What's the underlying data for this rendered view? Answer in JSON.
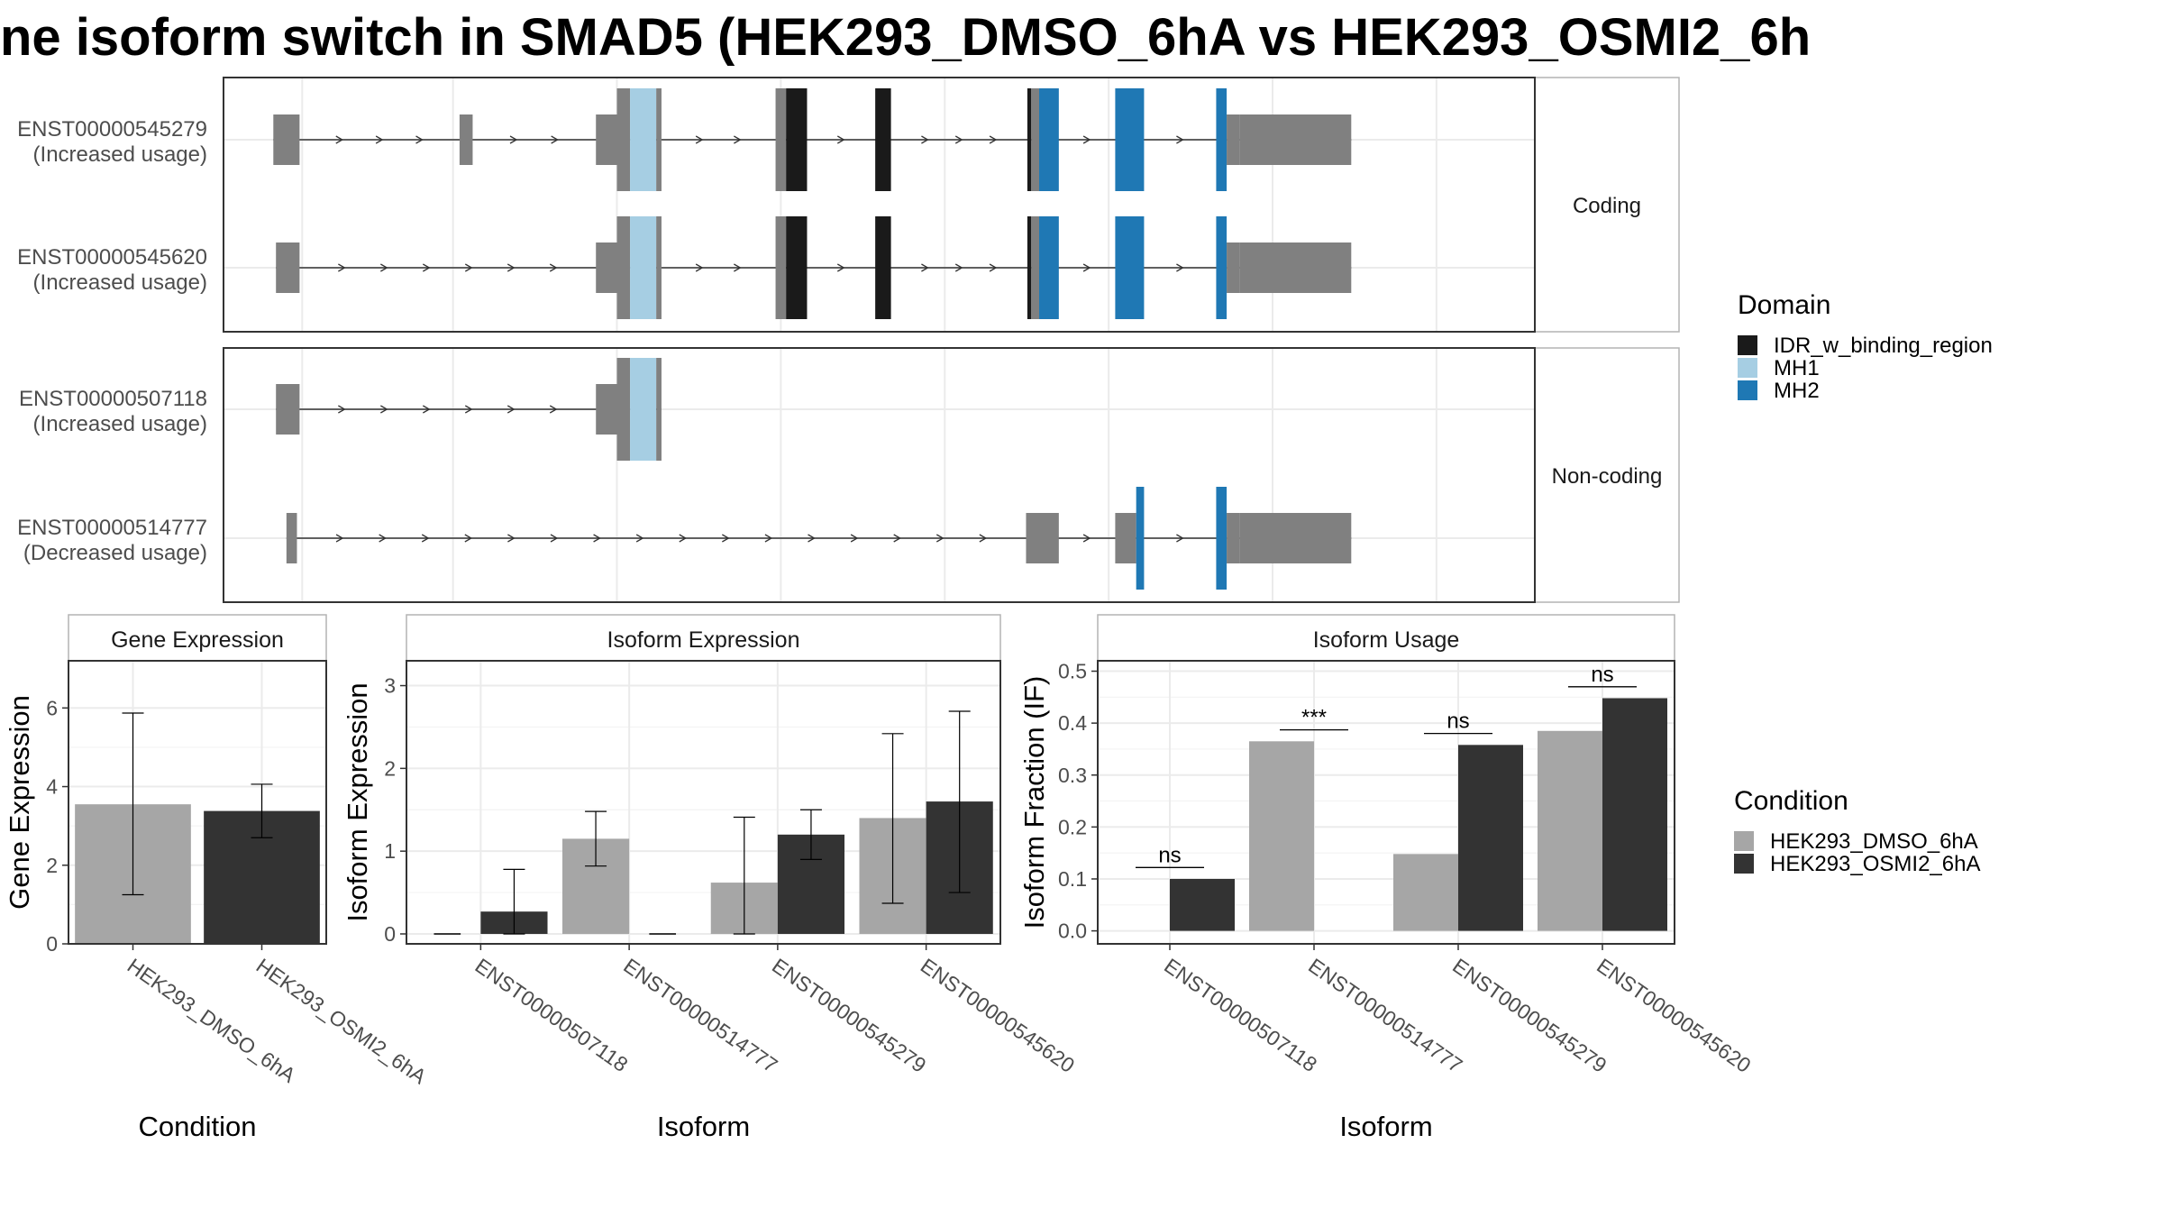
{
  "title": "ne isoform switch in SMAD5 (HEK293_DMSO_6hA vs HEK293_OSMI2_6h",
  "colors": {
    "utr": "#808080",
    "idr": "#1a1a1a",
    "mh1": "#a6cee3",
    "mh2": "#1f78b4",
    "dmso": "#a6a6a6",
    "osmi": "#333333"
  },
  "structure": {
    "xlim": [
      0,
      1000
    ],
    "facets": [
      {
        "label": "Coding",
        "transcripts": [
          {
            "id": "ENST00000545279",
            "usage": "(Increased usage)",
            "exons": [
              {
                "s": 38,
                "e": 58,
                "t": "utr"
              },
              {
                "s": 180,
                "e": 190,
                "t": "utr"
              },
              {
                "s": 284,
                "e": 300,
                "t": "utr"
              },
              {
                "s": 300,
                "e": 310,
                "t": "cds"
              },
              {
                "s": 310,
                "e": 330,
                "t": "mh1"
              },
              {
                "s": 330,
                "e": 334,
                "t": "cds"
              },
              {
                "s": 421,
                "e": 429,
                "t": "cds"
              },
              {
                "s": 429,
                "e": 445,
                "t": "idr"
              },
              {
                "s": 497,
                "e": 509,
                "t": "idr"
              },
              {
                "s": 613,
                "e": 616,
                "t": "idr"
              },
              {
                "s": 616,
                "e": 622,
                "t": "cds"
              },
              {
                "s": 622,
                "e": 637,
                "t": "mh2"
              },
              {
                "s": 680,
                "e": 702,
                "t": "mh2"
              },
              {
                "s": 757,
                "e": 765,
                "t": "mh2"
              },
              {
                "s": 765,
                "e": 775,
                "t": "utr"
              },
              {
                "s": 775,
                "e": 860,
                "t": "utr_thick"
              }
            ]
          },
          {
            "id": "ENST00000545620",
            "usage": "(Increased usage)",
            "exons": [
              {
                "s": 40,
                "e": 58,
                "t": "utr"
              },
              {
                "s": 284,
                "e": 300,
                "t": "utr"
              },
              {
                "s": 300,
                "e": 310,
                "t": "cds"
              },
              {
                "s": 310,
                "e": 330,
                "t": "mh1"
              },
              {
                "s": 330,
                "e": 334,
                "t": "cds"
              },
              {
                "s": 421,
                "e": 429,
                "t": "cds"
              },
              {
                "s": 429,
                "e": 445,
                "t": "idr"
              },
              {
                "s": 497,
                "e": 509,
                "t": "idr"
              },
              {
                "s": 613,
                "e": 616,
                "t": "idr"
              },
              {
                "s": 616,
                "e": 622,
                "t": "cds"
              },
              {
                "s": 622,
                "e": 637,
                "t": "mh2"
              },
              {
                "s": 680,
                "e": 702,
                "t": "mh2"
              },
              {
                "s": 757,
                "e": 765,
                "t": "mh2"
              },
              {
                "s": 765,
                "e": 775,
                "t": "utr"
              },
              {
                "s": 775,
                "e": 860,
                "t": "utr_thick"
              }
            ]
          }
        ]
      },
      {
        "label": "Non-coding",
        "transcripts": [
          {
            "id": "ENST00000507118",
            "usage": "(Increased usage)",
            "exons": [
              {
                "s": 40,
                "e": 58,
                "t": "utr"
              },
              {
                "s": 284,
                "e": 300,
                "t": "utr"
              },
              {
                "s": 300,
                "e": 310,
                "t": "cds"
              },
              {
                "s": 310,
                "e": 330,
                "t": "mh1"
              },
              {
                "s": 330,
                "e": 334,
                "t": "cds"
              }
            ]
          },
          {
            "id": "ENST00000514777",
            "usage": "(Decreased usage)",
            "exons": [
              {
                "s": 48,
                "e": 56,
                "t": "utr"
              },
              {
                "s": 612,
                "e": 637,
                "t": "utr"
              },
              {
                "s": 680,
                "e": 696,
                "t": "utr"
              },
              {
                "s": 696,
                "e": 702,
                "t": "mh2"
              },
              {
                "s": 757,
                "e": 765,
                "t": "mh2"
              },
              {
                "s": 765,
                "e": 775,
                "t": "utr"
              },
              {
                "s": 775,
                "e": 860,
                "t": "utr_thick"
              }
            ]
          }
        ]
      }
    ]
  },
  "legend_domain": {
    "title": "Domain",
    "items": [
      {
        "label": "IDR_w_binding_region",
        "color": "#1a1a1a"
      },
      {
        "label": "MH1",
        "color": "#a6cee3"
      },
      {
        "label": "MH2",
        "color": "#1f78b4"
      }
    ]
  },
  "legend_condition": {
    "title": "Condition",
    "items": [
      {
        "label": "HEK293_DMSO_6hA",
        "color": "#a6a6a6"
      },
      {
        "label": "HEK293_OSMI2_6hA",
        "color": "#333333"
      }
    ]
  },
  "chart_data": [
    {
      "type": "bar",
      "title": "Gene Expression",
      "xlabel": "Condition",
      "ylabel": "Gene Expression",
      "ylim": [
        0,
        7.2
      ],
      "yticks": [
        0,
        2,
        4,
        6
      ],
      "categories": [
        "HEK293_DMSO_6hA",
        "HEK293_OSMI2_6hA"
      ],
      "values": [
        3.55,
        3.38
      ],
      "errors": [
        [
          1.25,
          5.87
        ],
        [
          2.7,
          4.06
        ]
      ]
    },
    {
      "type": "bar",
      "title": "Isoform Expression",
      "xlabel": "Isoform",
      "ylabel": "Isoform Expression",
      "ylim": [
        -0.12,
        3.3
      ],
      "yticks": [
        0,
        1,
        2,
        3
      ],
      "categories": [
        "ENST00000507118",
        "ENST00000514777",
        "ENST00000545279",
        "ENST00000545620"
      ],
      "series": [
        {
          "name": "HEK293_DMSO_6hA",
          "values": [
            0.0,
            1.15,
            0.62,
            1.4
          ],
          "errors": [
            null,
            [
              0.82,
              1.48
            ],
            [
              0.0,
              1.41
            ],
            [
              0.37,
              2.42
            ]
          ]
        },
        {
          "name": "HEK293_OSMI2_6hA",
          "values": [
            0.27,
            0.0,
            1.2,
            1.6
          ],
          "errors": [
            [
              0.0,
              0.78
            ],
            null,
            [
              0.9,
              1.5
            ],
            [
              0.5,
              2.69
            ]
          ]
        }
      ]
    },
    {
      "type": "bar",
      "title": "Isoform Usage",
      "xlabel": "Isoform",
      "ylabel": "Isoform Fraction (IF)",
      "ylim": [
        -0.025,
        0.52
      ],
      "yticks": [
        0.0,
        0.1,
        0.2,
        0.3,
        0.4,
        0.5
      ],
      "ytick_labels": [
        "0.0",
        "0.1",
        "0.2",
        "0.3",
        "0.4",
        "0.5"
      ],
      "categories": [
        "ENST00000507118",
        "ENST00000514777",
        "ENST00000545279",
        "ENST00000545620"
      ],
      "series": [
        {
          "name": "HEK293_DMSO_6hA",
          "values": [
            0.0,
            0.365,
            0.148,
            0.385
          ]
        },
        {
          "name": "HEK293_OSMI2_6hA",
          "values": [
            0.1,
            0.0,
            0.358,
            0.448
          ]
        }
      ],
      "annotations": [
        {
          "category": "ENST00000507118",
          "text": "ns",
          "y": 0.122
        },
        {
          "category": "ENST00000514777",
          "text": "***",
          "y": 0.387
        },
        {
          "category": "ENST00000545279",
          "text": "ns",
          "y": 0.38
        },
        {
          "category": "ENST00000545620",
          "text": "ns",
          "y": 0.47
        }
      ]
    }
  ]
}
